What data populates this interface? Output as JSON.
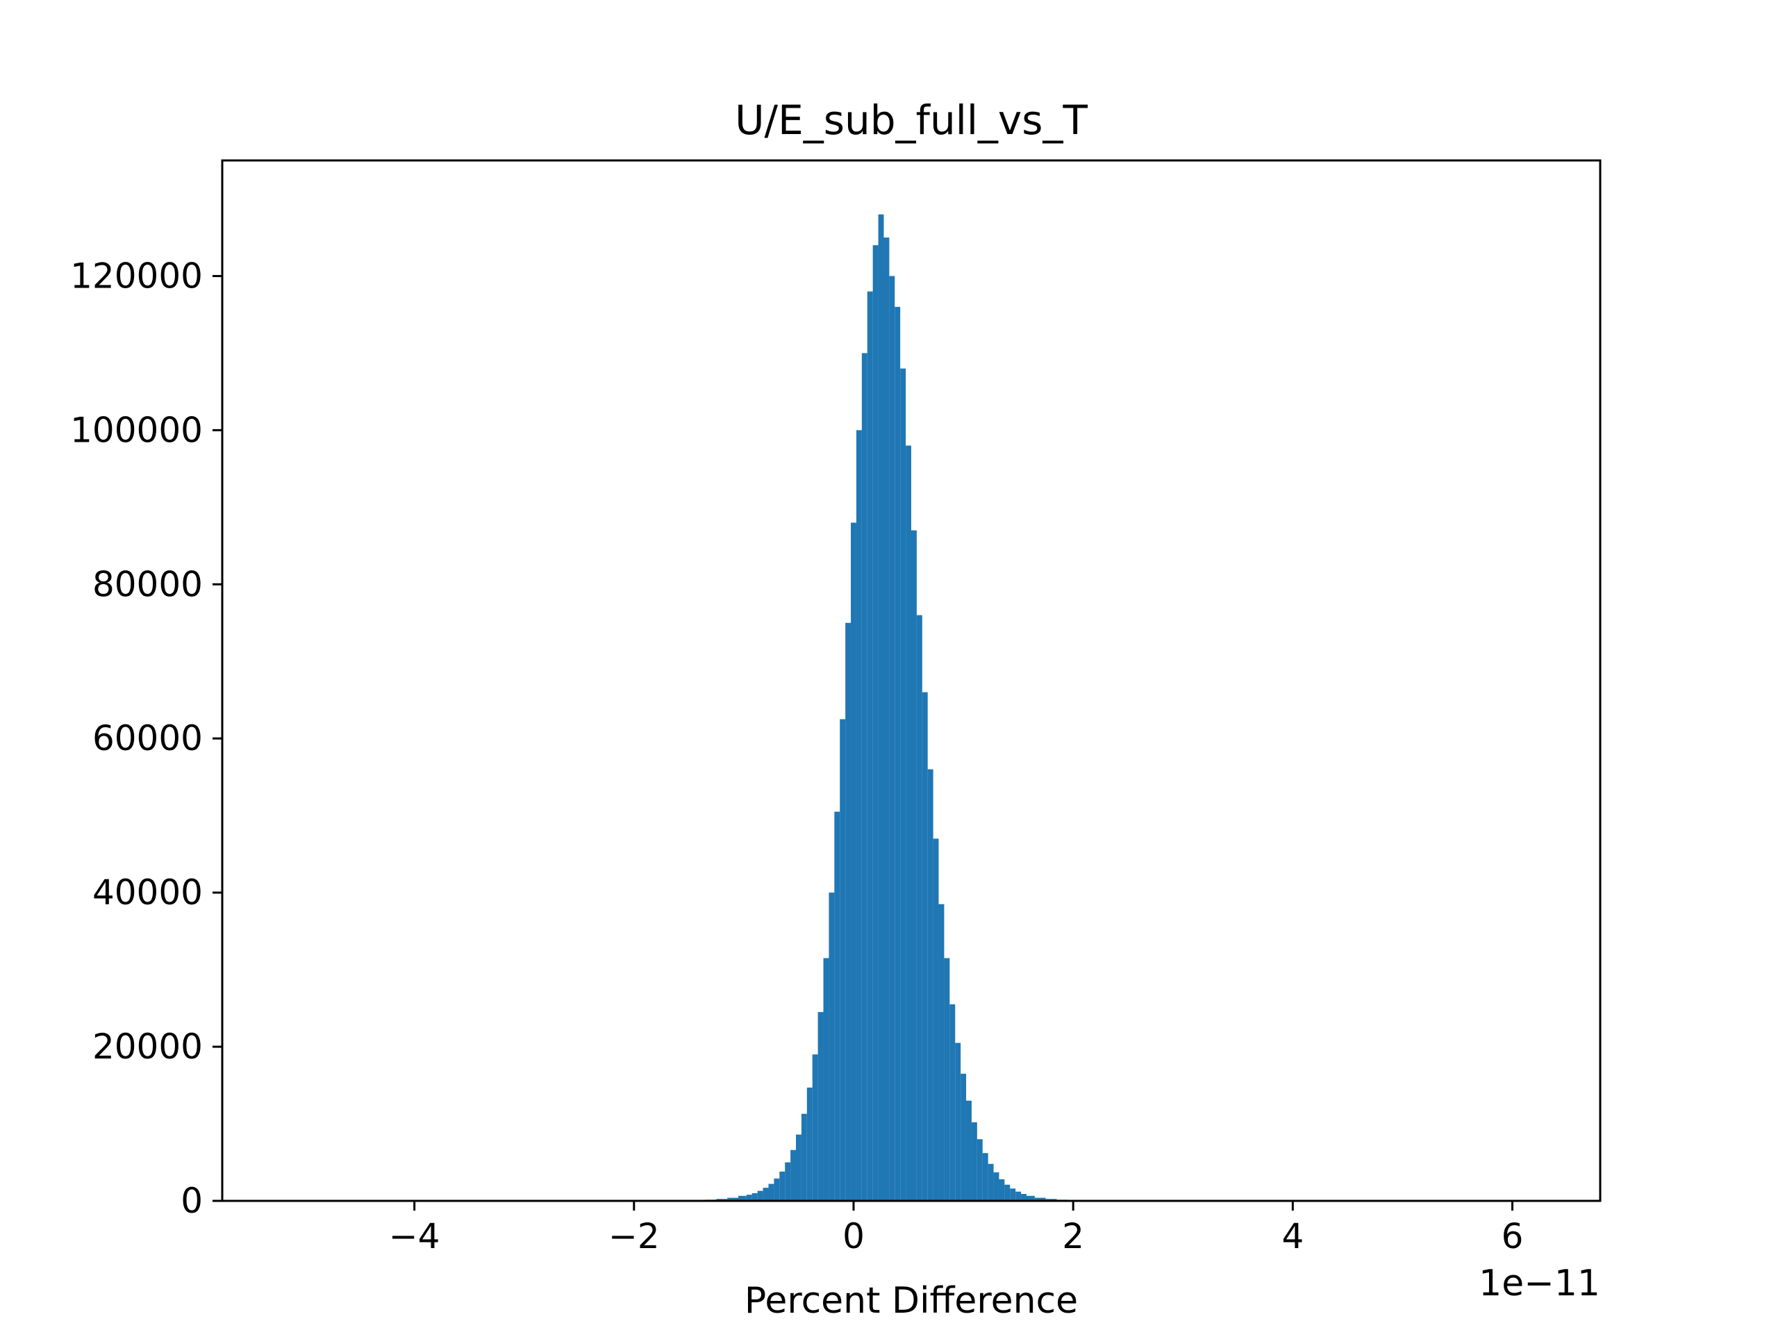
{
  "chart_data": {
    "type": "bar",
    "title": "U/E_sub_full_vs_T",
    "xlabel": "Percent Difference",
    "ylabel": "",
    "x_offset_label": "1e−11",
    "xlim": [
      -5.75,
      6.8
    ],
    "ylim": [
      0,
      135000
    ],
    "x_ticks": [
      -4,
      -2,
      0,
      2,
      4,
      6
    ],
    "x_tick_labels": [
      "−4",
      "−2",
      "0",
      "2",
      "4",
      "6"
    ],
    "y_ticks": [
      0,
      20000,
      40000,
      60000,
      80000,
      100000,
      120000
    ],
    "y_tick_labels": [
      "0",
      "20000",
      "40000",
      "60000",
      "80000",
      "100000",
      "120000"
    ],
    "grid": false,
    "bar_color": "#1f77b4",
    "bins": [
      {
        "x": -1.4,
        "y": 100
      },
      {
        "x": -1.3,
        "y": 150
      },
      {
        "x": -1.2,
        "y": 250
      },
      {
        "x": -1.1,
        "y": 400
      },
      {
        "x": -1.0,
        "y": 650
      },
      {
        "x": -0.95,
        "y": 800
      },
      {
        "x": -0.9,
        "y": 1000
      },
      {
        "x": -0.85,
        "y": 1300
      },
      {
        "x": -0.8,
        "y": 1700
      },
      {
        "x": -0.75,
        "y": 2200
      },
      {
        "x": -0.7,
        "y": 2900
      },
      {
        "x": -0.65,
        "y": 3800
      },
      {
        "x": -0.6,
        "y": 5000
      },
      {
        "x": -0.55,
        "y": 6600
      },
      {
        "x": -0.5,
        "y": 8600
      },
      {
        "x": -0.45,
        "y": 11300
      },
      {
        "x": -0.4,
        "y": 14700
      },
      {
        "x": -0.35,
        "y": 19000
      },
      {
        "x": -0.3,
        "y": 24500
      },
      {
        "x": -0.25,
        "y": 31500
      },
      {
        "x": -0.2,
        "y": 40000
      },
      {
        "x": -0.15,
        "y": 50500
      },
      {
        "x": -0.1,
        "y": 62500
      },
      {
        "x": -0.05,
        "y": 75000
      },
      {
        "x": 0.0,
        "y": 88000
      },
      {
        "x": 0.05,
        "y": 100000
      },
      {
        "x": 0.1,
        "y": 110000
      },
      {
        "x": 0.15,
        "y": 118000
      },
      {
        "x": 0.2,
        "y": 124000
      },
      {
        "x": 0.25,
        "y": 128000
      },
      {
        "x": 0.3,
        "y": 125000
      },
      {
        "x": 0.35,
        "y": 120000
      },
      {
        "x": 0.4,
        "y": 116000
      },
      {
        "x": 0.45,
        "y": 108000
      },
      {
        "x": 0.5,
        "y": 98000
      },
      {
        "x": 0.55,
        "y": 87000
      },
      {
        "x": 0.6,
        "y": 76000
      },
      {
        "x": 0.65,
        "y": 66000
      },
      {
        "x": 0.7,
        "y": 56000
      },
      {
        "x": 0.75,
        "y": 47000
      },
      {
        "x": 0.8,
        "y": 38500
      },
      {
        "x": 0.85,
        "y": 31500
      },
      {
        "x": 0.9,
        "y": 25500
      },
      {
        "x": 0.95,
        "y": 20500
      },
      {
        "x": 1.0,
        "y": 16500
      },
      {
        "x": 1.05,
        "y": 13000
      },
      {
        "x": 1.1,
        "y": 10200
      },
      {
        "x": 1.15,
        "y": 8000
      },
      {
        "x": 1.2,
        "y": 6200
      },
      {
        "x": 1.25,
        "y": 4800
      },
      {
        "x": 1.3,
        "y": 3700
      },
      {
        "x": 1.35,
        "y": 2800
      },
      {
        "x": 1.4,
        "y": 2100
      },
      {
        "x": 1.45,
        "y": 1600
      },
      {
        "x": 1.5,
        "y": 1200
      },
      {
        "x": 1.55,
        "y": 900
      },
      {
        "x": 1.6,
        "y": 650
      },
      {
        "x": 1.7,
        "y": 400
      },
      {
        "x": 1.8,
        "y": 250
      },
      {
        "x": 1.9,
        "y": 150
      },
      {
        "x": 2.0,
        "y": 100
      }
    ]
  }
}
